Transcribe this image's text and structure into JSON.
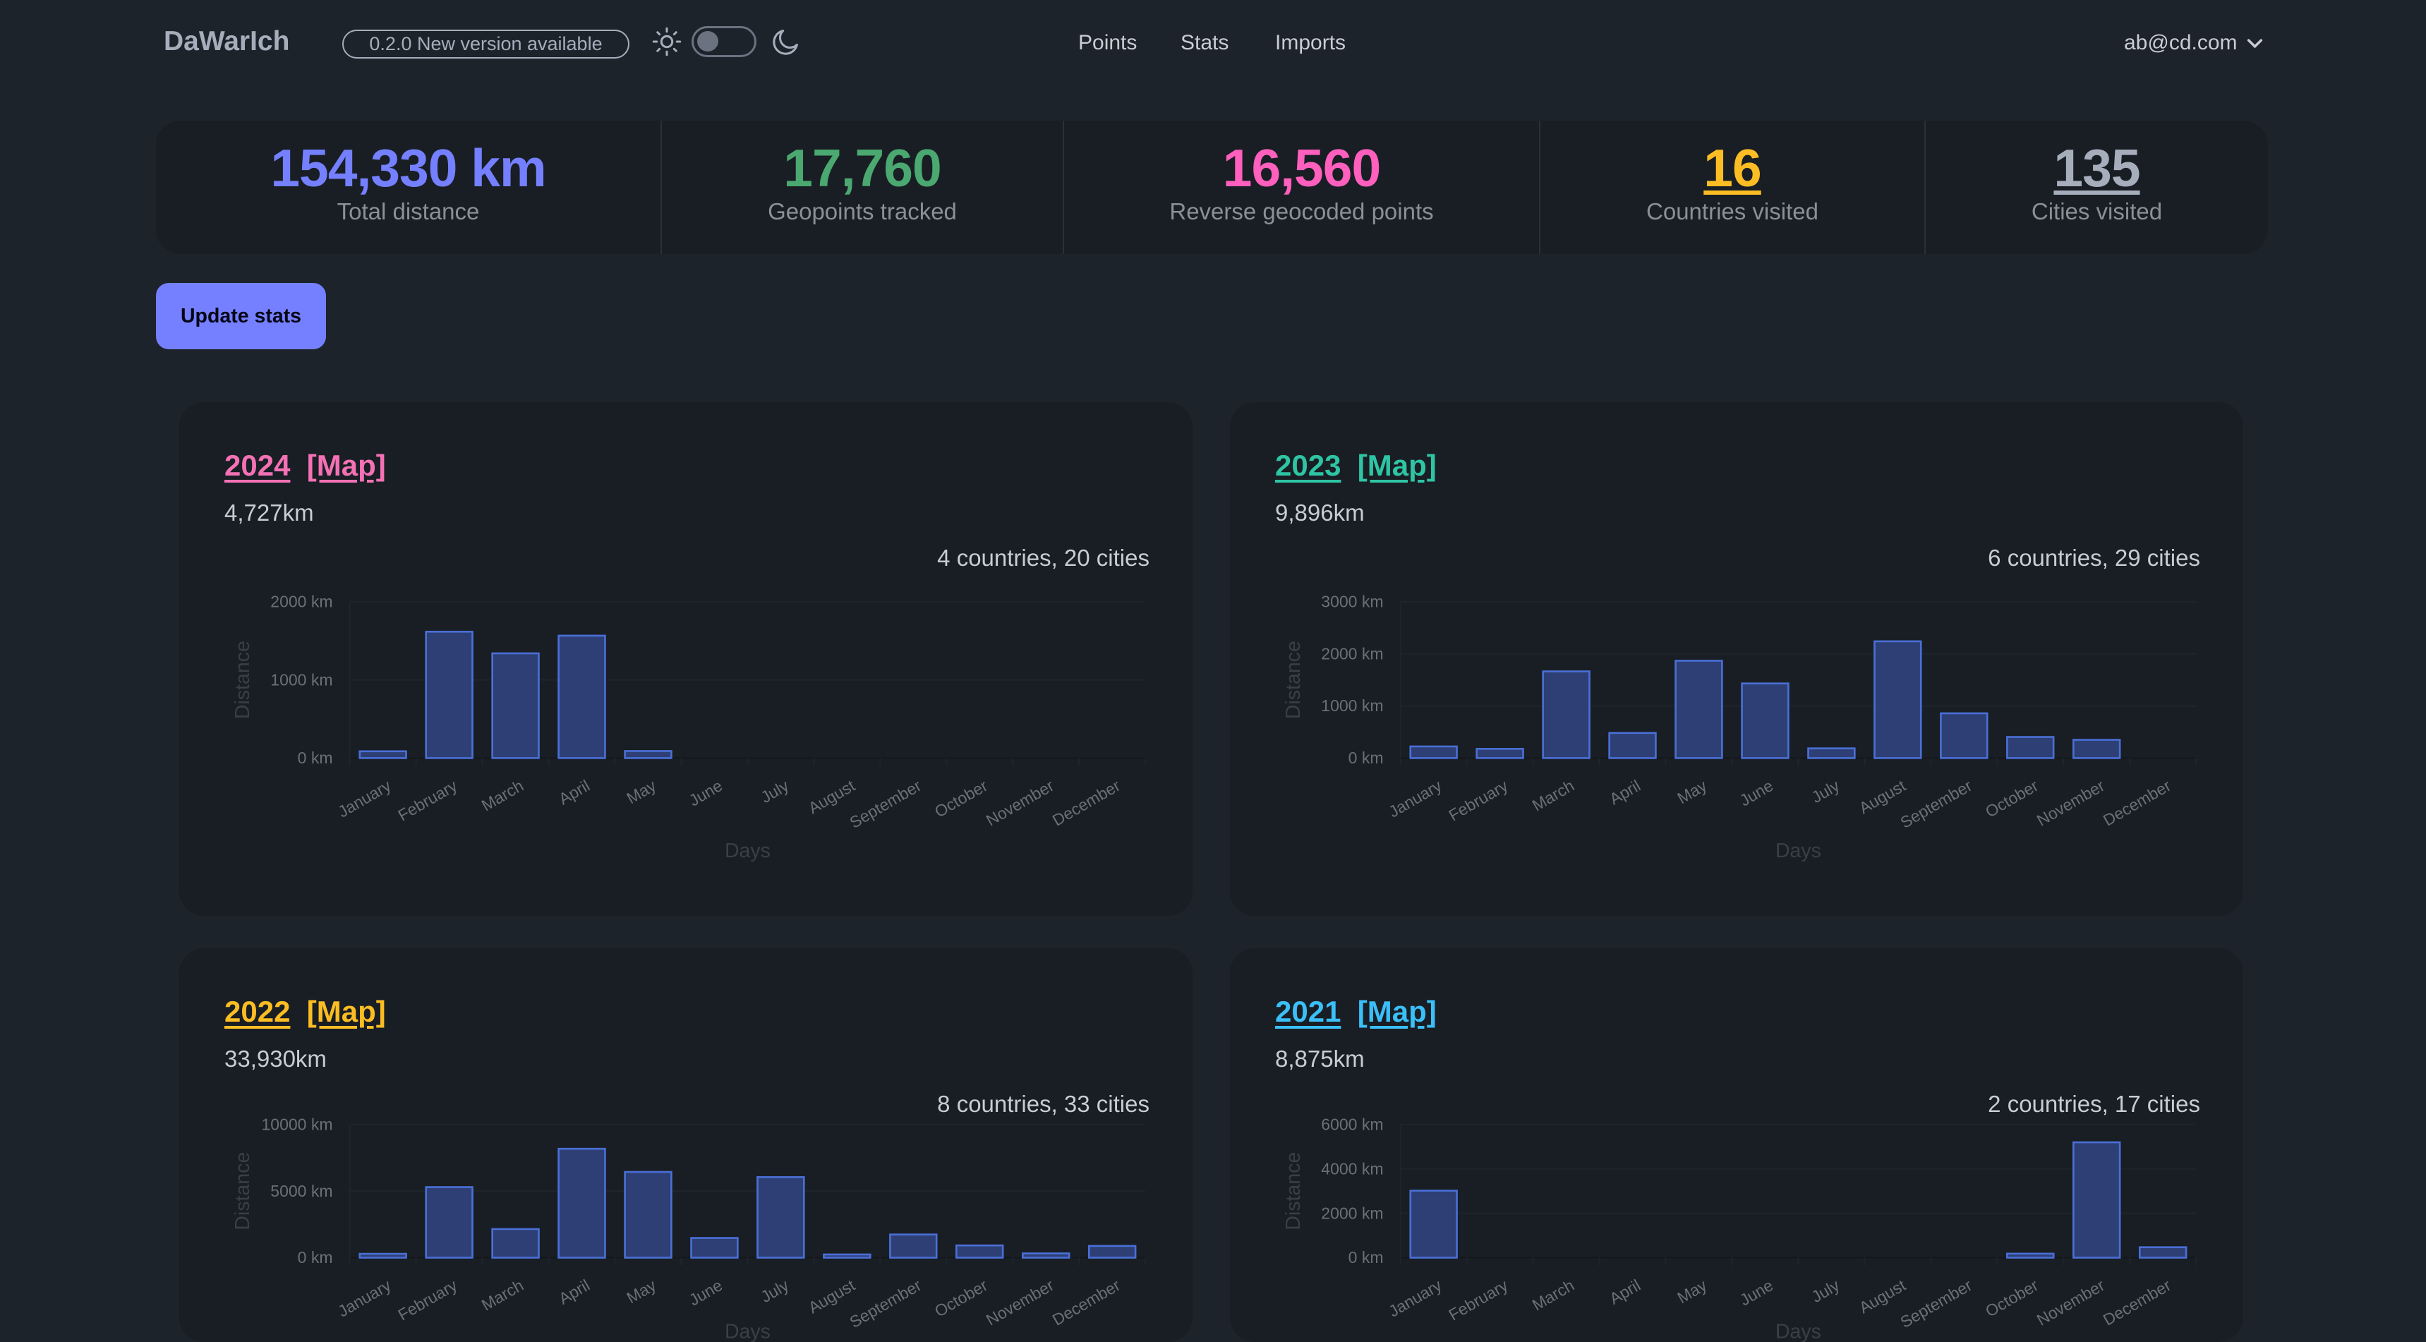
{
  "header": {
    "logo": "DaWarIch",
    "version_badge": "0.2.0  New version available",
    "theme_toggle": {
      "light_icon": "sun-icon",
      "dark_icon": "moon-icon",
      "dark_mode": false
    },
    "nav": [
      {
        "label": "Points"
      },
      {
        "label": "Stats"
      },
      {
        "label": "Imports"
      }
    ],
    "user": {
      "email": "ab@cd.com",
      "icon": "chevron-down-icon"
    }
  },
  "stats": [
    {
      "value": "154,330 km",
      "label": "Total distance",
      "color": "#7480ff"
    },
    {
      "value": "17,760",
      "label": "Geopoints tracked",
      "color": "#4aa870"
    },
    {
      "value": "16,560",
      "label": "Reverse geocoded points",
      "color": "#ff5fbd"
    },
    {
      "value": "16",
      "label": "Countries visited",
      "color": "#fbbd23"
    },
    {
      "value": "135",
      "label": "Cities visited",
      "color": "#a6adbb"
    }
  ],
  "update_button": "Update stats",
  "years": [
    {
      "year": "2024",
      "map_label": "[Map]",
      "distance": "4,727km",
      "summary": "4 countries, 20 cities",
      "color": "#f471b5"
    },
    {
      "year": "2023",
      "map_label": "[Map]",
      "distance": "9,896km",
      "summary": "6 countries, 29 cities",
      "color": "#2ec4a4"
    },
    {
      "year": "2022",
      "map_label": "[Map]",
      "distance": "33,930km",
      "summary": "8 countries, 33 cities",
      "color": "#fbbd23"
    },
    {
      "year": "2021",
      "map_label": "[Map]",
      "distance": "8,875km",
      "summary": "2 countries, 17 cities",
      "color": "#3abff8"
    }
  ],
  "chart_data": [
    {
      "type": "bar",
      "title": "",
      "xlabel": "Days",
      "ylabel": "Distance",
      "ylim": [
        0,
        2000
      ],
      "yticks": [
        "0 km",
        "1000 km",
        "2000 km"
      ],
      "grid": true,
      "categories": [
        "January",
        "February",
        "March",
        "April",
        "May",
        "June",
        "July",
        "August",
        "September",
        "October",
        "November",
        "December"
      ],
      "values": [
        87,
        1617,
        1340,
        1566,
        90,
        0,
        0,
        0,
        0,
        0,
        0,
        0
      ]
    },
    {
      "type": "bar",
      "title": "",
      "xlabel": "Days",
      "ylabel": "Distance",
      "ylim": [
        0,
        3000
      ],
      "yticks": [
        "0 km",
        "1000 km",
        "2000 km",
        "3000 km"
      ],
      "grid": true,
      "categories": [
        "January",
        "February",
        "March",
        "April",
        "May",
        "June",
        "July",
        "August",
        "September",
        "October",
        "November",
        "December"
      ],
      "values": [
        223,
        177,
        1664,
        482,
        1868,
        1432,
        186,
        2241,
        859,
        405,
        350,
        0
      ]
    },
    {
      "type": "bar",
      "title": "",
      "xlabel": "Days",
      "ylabel": "Distance",
      "ylim": [
        0,
        10000
      ],
      "yticks": [
        "0 km",
        "5000 km",
        "10000 km"
      ],
      "grid": true,
      "categories": [
        "January",
        "February",
        "March",
        "April",
        "May",
        "June",
        "July",
        "August",
        "September",
        "October",
        "November",
        "December"
      ],
      "values": [
        288,
        5300,
        2150,
        8180,
        6440,
        1480,
        6050,
        240,
        1740,
        920,
        320,
        880
      ]
    },
    {
      "type": "bar",
      "title": "",
      "xlabel": "Days",
      "ylabel": "Distance",
      "ylim": [
        0,
        6000
      ],
      "yticks": [
        "0 km",
        "2000 km",
        "4000 km",
        "6000 km"
      ],
      "grid": true,
      "categories": [
        "January",
        "February",
        "March",
        "April",
        "May",
        "June",
        "July",
        "August",
        "September",
        "October",
        "November",
        "December"
      ],
      "values": [
        3020,
        0,
        0,
        0,
        0,
        0,
        0,
        0,
        0,
        180,
        5200,
        470
      ]
    }
  ]
}
